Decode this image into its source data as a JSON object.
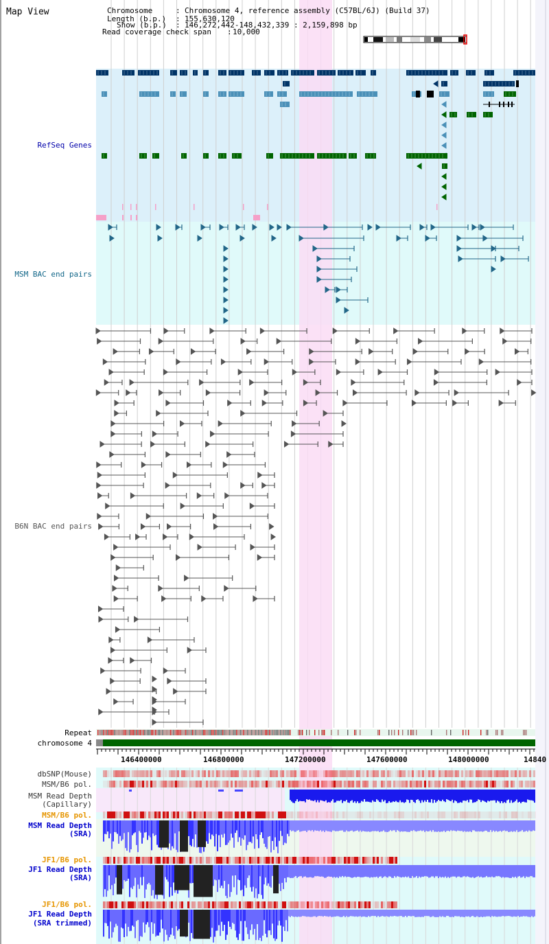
{
  "page": {
    "title": "Map View"
  },
  "info": {
    "chromosome_key": "Chromosome",
    "chromosome_val": "Chromosome 4, reference assembly (C57BL/6J) (Build 37)",
    "length_key": "Length (b.p.)",
    "length_val": "155,630,120",
    "show_key": "Show (b.p.)",
    "show_val": "146,272,442-148,432,339 : 2,159,898 bp",
    "coverage_key": "Read coverage check span",
    "coverage_val": "10,000"
  },
  "tracks": {
    "refseq": "RefSeq Genes",
    "msm_bac": "MSM BAC end pairs",
    "b6n_bac": "B6N BAC end pairs",
    "repeat": "Repeat",
    "chromosome": "chromosome 4",
    "dbsnp": "dbSNP(Mouse)",
    "msm_b6_pol": "MSM/B6 pol.",
    "msm_depth_cap_1": "MSM Read Depth",
    "msm_depth_cap_2": "(Capillary)",
    "msm_b6_pol_2": "MSM/B6 pol.",
    "msm_depth_sra_1": "MSM Read Depth",
    "msm_depth_sra_2": "(SRA)",
    "jf1_b6_pol": "JF1/B6 pol.",
    "jf1_depth_sra_1": "JF1 Read Depth",
    "jf1_depth_sra_2": "(SRA)",
    "jf1_b6_pol_2": "JF1/B6 pol.",
    "jf1_depth_trim_1": "JF1 Read Depth",
    "jf1_depth_trim_2": "(SRA trimmed)"
  },
  "axis": {
    "ticks": [
      "146400000",
      "146800000",
      "147200000",
      "147600000",
      "148000000",
      "14840"
    ]
  },
  "colors": {
    "refseq_bg": "#dcf0fa",
    "msm_bac_bg": "#e0fafa",
    "highlight": "#fadcf5",
    "gene_dark": "#003366",
    "gene_mid": "#4a90b8",
    "gene_green": "#006400",
    "bac_teal": "#226688",
    "bac_gray": "#555555",
    "depth_blue": "#1a1aee",
    "pol_red": "#e83030",
    "label_blue": "#0000cc",
    "label_teal": "#116688",
    "label_orange": "#e69500"
  }
}
